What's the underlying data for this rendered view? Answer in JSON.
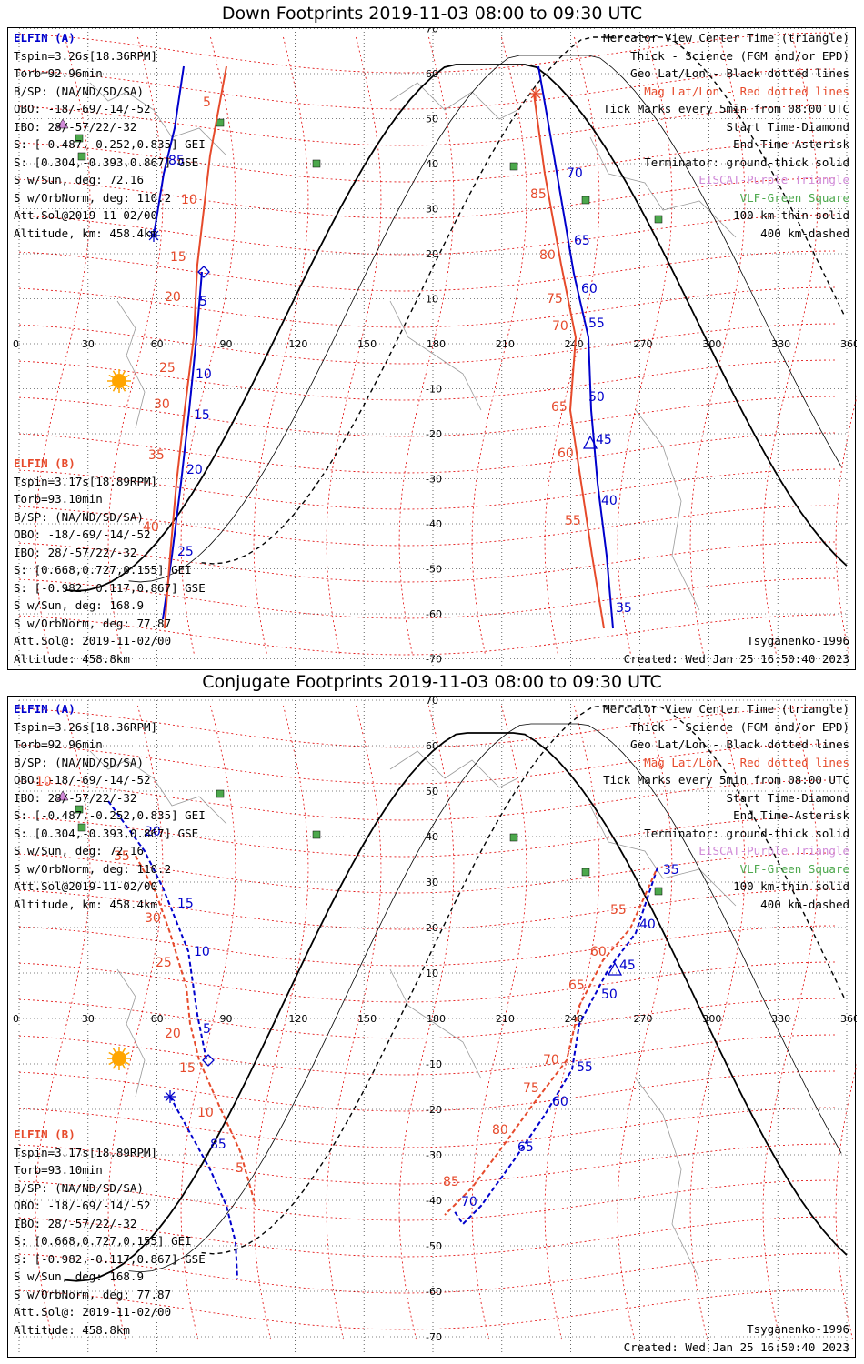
{
  "panels": [
    {
      "title": "Down Footprints 2019-11-03 08:00 to 09:30 UTC",
      "left_a": [
        "ELFIN (A)",
        "Tspin=3.26s[18.36RPM]",
        "Torb=92.96min",
        "B/SP: (NA/ND/SD/SA)",
        "OBO: -18/-69/-14/-52",
        "IBO: 28/-57/22/-32",
        "S: [-0.487,-0.252,0.835] GEI",
        "S: [0.304,-0.393,0.867] GSE",
        "S w/Sun, deg: 72.16",
        "S w/OrbNorm, deg: 110.2",
        "Att.Sol@2019-11-02/00",
        "Altitude, km: 458.4km"
      ],
      "left_b": [
        "ELFIN (B)",
        "Tspin=3.17s[18.89RPM]",
        "Torb=93.10min",
        "B/SP: (NA/ND/SD/SA)",
        "OBO: -18/-69/-14/-52",
        "IBO: 28/-57/22/-32",
        "S: [0.668,0.727,0.155] GEI",
        "S: [-0.982,-0.117,0.867] GSE",
        "S w/Sun, deg: 168.9",
        "S w/OrbNorm, deg: 77.87",
        "Att.Sol@: 2019-11-02/00",
        "Altitude: 458.8km"
      ],
      "legend": [
        {
          "text": "Mercator View Center Time (triangle)",
          "color": "#000000"
        },
        {
          "text": "Thick - Science (FGM and/or EPD)",
          "color": "#000000"
        },
        {
          "text": "Geo Lat/Lon - Black dotted lines",
          "color": "#000000"
        },
        {
          "text": "Mag Lat/Lon - Red dotted lines",
          "color": "#e64a2b"
        },
        {
          "text": "Tick Marks every 5min from 08:00 UTC",
          "color": "#000000"
        },
        {
          "text": "Start Time-Diamond",
          "color": "#000000"
        },
        {
          "text": "End Time-Asterisk",
          "color": "#000000"
        },
        {
          "text": "Terminator: ground-thick solid",
          "color": "#000000"
        },
        {
          "text": "EISCAT-Purple Triangle",
          "color": "#d08ad8"
        },
        {
          "text": "VLF-Green Square",
          "color": "#4ca84c"
        },
        {
          "text": "100 km-thin solid",
          "color": "#000000"
        },
        {
          "text": "400 km-dashed",
          "color": "#000000"
        }
      ],
      "footer_model": "Tsyganenko-1996",
      "footer_created": "Created: Wed Jan 25 16:50:40 2023",
      "lon_ticks": [
        "0",
        "30",
        "60",
        "90",
        "120",
        "150",
        "180",
        "210",
        "240",
        "270",
        "300",
        "330",
        "360"
      ],
      "lat_ticks": [
        "70",
        "60",
        "50",
        "40",
        "30",
        "20",
        "10",
        "-10",
        "-20",
        "-30",
        "-40",
        "-50",
        "-60",
        "-70"
      ],
      "track_a_labels": [
        "85",
        "5",
        "10",
        "15",
        "20",
        "25",
        "70",
        "65",
        "60",
        "55",
        "50",
        "45",
        "40",
        "35"
      ],
      "track_b_labels": [
        "5",
        "10",
        "15",
        "20",
        "25",
        "30",
        "35",
        "40",
        "85",
        "80",
        "75",
        "70",
        "65",
        "60",
        "55"
      ]
    },
    {
      "title": "Conjugate Footprints 2019-11-03 08:00 to 09:30 UTC",
      "left_a": [
        "ELFIN (A)",
        "Tspin=3.26s[18.36RPM]",
        "Torb=92.96min",
        "B/SP: (NA/ND/SD/SA)",
        "OBO: -18/-69/-14/-52",
        "IBO: 28/-57/22/-32",
        "S: [-0.487,-0.252,0.835] GEI",
        "S: [0.304,-0.393,0.867] GSE",
        "S w/Sun, deg: 72.16",
        "S w/OrbNorm, deg: 110.2",
        "Att.Sol@2019-11-02/00",
        "Altitude, km: 458.4km"
      ],
      "left_b": [
        "ELFIN (B)",
        "Tspin=3.17s[18.89RPM]",
        "Torb=93.10min",
        "B/SP: (NA/ND/SD/SA)",
        "OBO: -18/-69/-14/-52",
        "IBO: 28/-57/22/-32",
        "S: [0.668,0.727,0.155] GEI",
        "S: [-0.982,-0.117,0.867] GSE",
        "S w/Sun, deg: 168.9",
        "S w/OrbNorm, deg: 77.87",
        "Att.Sol@: 2019-11-02/00",
        "Altitude: 458.8km"
      ],
      "legend": [
        {
          "text": "Mercator View Center Time (triangle)",
          "color": "#000000"
        },
        {
          "text": "Thick - Science (FGM and/or EPD)",
          "color": "#000000"
        },
        {
          "text": "Geo Lat/Lon - Black dotted lines",
          "color": "#000000"
        },
        {
          "text": "Mag Lat/Lon - Red dotted lines",
          "color": "#e64a2b"
        },
        {
          "text": "Tick Marks every 5min from 08:00 UTC",
          "color": "#000000"
        },
        {
          "text": "Start Time-Diamond",
          "color": "#000000"
        },
        {
          "text": "End Time-Asterisk",
          "color": "#000000"
        },
        {
          "text": "Terminator: ground-thick solid",
          "color": "#000000"
        },
        {
          "text": "EISCAT-Purple Triangle",
          "color": "#d08ad8"
        },
        {
          "text": "VLF-Green Square",
          "color": "#4ca84c"
        },
        {
          "text": "100 km-thin solid",
          "color": "#000000"
        },
        {
          "text": "400 km-dashed",
          "color": "#000000"
        }
      ],
      "footer_model": "Tsyganenko-1996",
      "footer_created": "Created: Wed Jan 25 16:50:40 2023",
      "lon_ticks": [
        "0",
        "30",
        "60",
        "90",
        "120",
        "150",
        "180",
        "210",
        "240",
        "270",
        "300",
        "330",
        "360"
      ],
      "lat_ticks": [
        "70",
        "60",
        "50",
        "40",
        "30",
        "20",
        "10",
        "-10",
        "-20",
        "-30",
        "-40",
        "-50",
        "-60",
        "-70"
      ],
      "track_a_labels": [
        "20",
        "15",
        "10",
        "5",
        "85",
        "35",
        "40",
        "45",
        "50",
        "55",
        "60",
        "65",
        "70"
      ],
      "track_b_labels": [
        "10",
        "35",
        "30",
        "25",
        "20",
        "15",
        "10",
        "5",
        "55",
        "60",
        "65",
        "70",
        "75",
        "80",
        "85"
      ]
    }
  ],
  "colors": {
    "elfin_a": "#0000cc",
    "elfin_b": "#e64a2b",
    "mag_grid": "#e00000",
    "geo_grid": "#000000",
    "eiscat": "#d08ad8",
    "vlf": "#4ca84c",
    "sun": "#ffa500"
  }
}
